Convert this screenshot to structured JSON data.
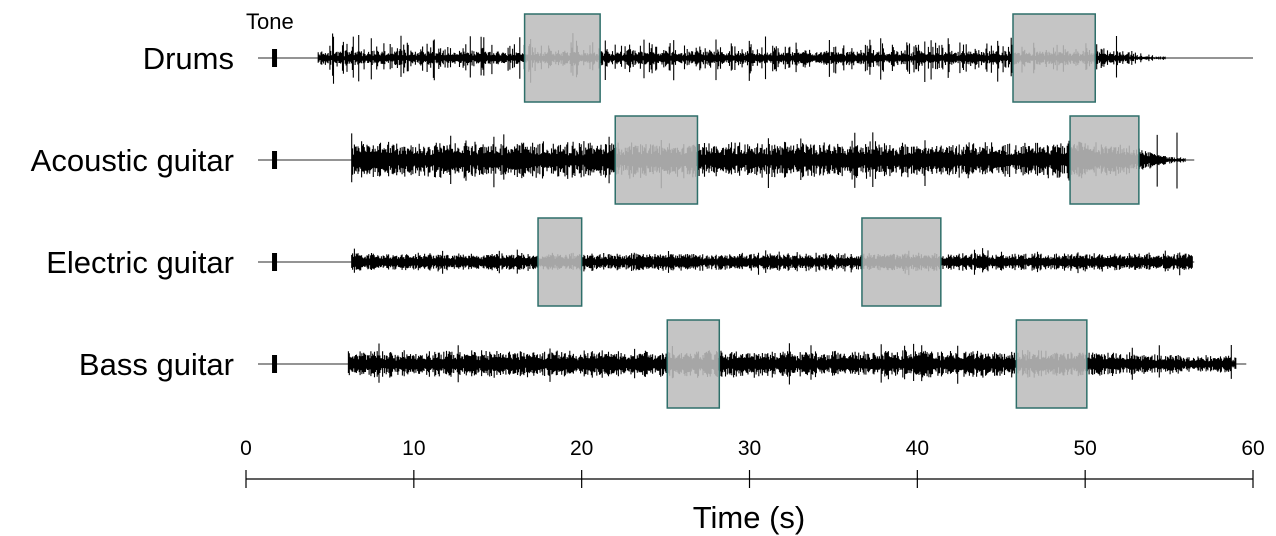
{
  "chart_data": {
    "type": "waveform",
    "tone_label": "Tone",
    "xlabel": "Time (s)",
    "xlim": [
      0,
      60
    ],
    "xticks": [
      0,
      10,
      20,
      30,
      40,
      50,
      60
    ],
    "tone_time": 1.7,
    "tracks": [
      {
        "name": "Drums",
        "signal_start": 4.3,
        "signal_end": 54.8,
        "line_end": 60,
        "highlights": [
          [
            16.6,
            21.1
          ],
          [
            45.7,
            50.6
          ]
        ]
      },
      {
        "name": "Acoustic guitar",
        "signal_start": 6.3,
        "signal_end": 56.0,
        "line_end": 56.5,
        "highlights": [
          [
            22.0,
            26.9
          ],
          [
            49.1,
            53.2
          ]
        ]
      },
      {
        "name": "Electric guitar",
        "signal_start": 6.3,
        "signal_end": 56.4,
        "line_end": 56.5,
        "highlights": [
          [
            17.4,
            20.0
          ],
          [
            36.7,
            41.4
          ]
        ]
      },
      {
        "name": "Bass guitar",
        "signal_start": 6.1,
        "signal_end": 59.0,
        "line_end": 59.6,
        "highlights": [
          [
            25.1,
            28.2
          ],
          [
            45.9,
            50.1
          ]
        ]
      }
    ]
  }
}
